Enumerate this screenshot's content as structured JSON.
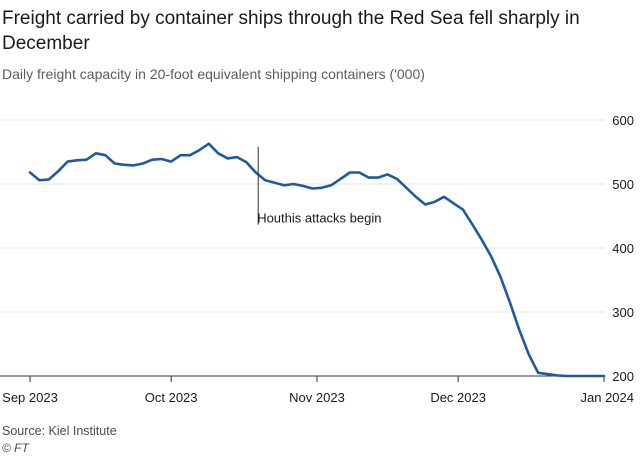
{
  "title": "Freight carried by container ships through the Red Sea fell sharply in December",
  "subtitle": "Daily freight capacity in 20-foot equivalent shipping containers ('000)",
  "source": "Source: Kiel Institute",
  "credit": "© FT",
  "colors": {
    "line": "#1f5aa0",
    "grid": "#e6e6e6",
    "axis": "#333333",
    "text": "#1a1a1a",
    "muted": "#5c5c5c"
  },
  "chart_data": {
    "type": "line",
    "title": "Freight carried by container ships through the Red Sea fell sharply in December",
    "ylabel": "Daily freight capacity in 20-foot equivalent shipping containers ('000)",
    "xlabel": "",
    "ylim": [
      200,
      600
    ],
    "yticks": [
      200,
      300,
      400,
      500,
      600
    ],
    "xlim": [
      0,
      122
    ],
    "xticks": [
      {
        "label": "Sep 2023",
        "x": 0
      },
      {
        "label": "Oct 2023",
        "x": 30
      },
      {
        "label": "Nov 2023",
        "x": 61
      },
      {
        "label": "Dec 2023",
        "x": 91
      },
      {
        "label": "Jan 2024",
        "x": 122
      }
    ],
    "grid": true,
    "series": [
      {
        "name": "Daily freight capacity",
        "x": [
          0,
          2,
          4,
          6,
          8,
          10,
          12,
          14,
          16,
          18,
          20,
          22,
          24,
          26,
          28,
          30,
          32,
          34,
          36,
          38,
          40,
          42,
          44,
          46,
          48,
          50,
          52,
          54,
          56,
          58,
          60,
          62,
          64,
          66,
          68,
          70,
          72,
          74,
          76,
          78,
          80,
          82,
          84,
          86,
          88,
          90,
          92,
          94,
          96,
          98,
          100,
          102,
          104,
          106,
          108,
          110,
          112,
          114,
          116,
          118,
          120,
          122
        ],
        "values": [
          518,
          506,
          507,
          520,
          535,
          537,
          538,
          548,
          545,
          532,
          530,
          529,
          532,
          538,
          539,
          535,
          545,
          545,
          553,
          563,
          548,
          540,
          542,
          534,
          518,
          506,
          502,
          498,
          500,
          497,
          493,
          494,
          498,
          508,
          518,
          518,
          510,
          510,
          515,
          508,
          494,
          480,
          468,
          472,
          480,
          470,
          460,
          437,
          413,
          387,
          355,
          315,
          272,
          234,
          205,
          203,
          201,
          200,
          200,
          200,
          200,
          200
        ]
      }
    ],
    "annotations": [
      {
        "text": "Houthis attacks begin",
        "x": 48.5,
        "y": 563
      }
    ]
  }
}
